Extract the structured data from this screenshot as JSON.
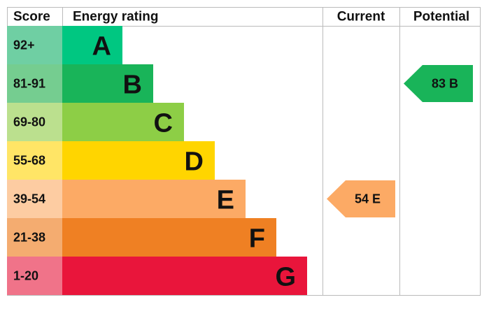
{
  "header": {
    "score": "Score",
    "rating": "Energy rating",
    "current": "Current",
    "potential": "Potential"
  },
  "bands": [
    {
      "score": "92+",
      "letter": "A",
      "color": "#00c781",
      "score_color": "#6fcfa3"
    },
    {
      "score": "81-91",
      "letter": "B",
      "color": "#19b459",
      "score_color": "#75cd90"
    },
    {
      "score": "69-80",
      "letter": "C",
      "color": "#8dce46",
      "score_color": "#bbe08e"
    },
    {
      "score": "55-68",
      "letter": "D",
      "color": "#ffd500",
      "score_color": "#ffe566"
    },
    {
      "score": "39-54",
      "letter": "E",
      "color": "#fcaa65",
      "score_color": "#fdcca2"
    },
    {
      "score": "21-38",
      "letter": "F",
      "color": "#ef8023",
      "score_color": "#f4ac70"
    },
    {
      "score": "1-20",
      "letter": "G",
      "color": "#e9153b",
      "score_color": "#f07389"
    }
  ],
  "current": {
    "value": 54,
    "letter": "E"
  },
  "potential": {
    "value": 83,
    "letter": "B"
  }
}
